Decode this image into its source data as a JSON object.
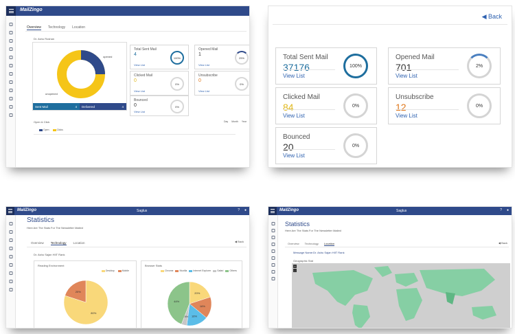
{
  "brand": {
    "logo": "MailZingo",
    "name_center": "Saglus"
  },
  "colors": {
    "header": "#2f4a8a",
    "accent_blue": "#1e6e9e",
    "yellow": "#f5c518",
    "orange": "#e0781c"
  },
  "tile1": {
    "tabs": [
      "Overview",
      "Technology",
      "Location"
    ],
    "breadcrumb": "Dr. Ashu Roshan",
    "donut": {
      "opened_label": "opened",
      "unopened_label": "unopened",
      "opened_fraction": 0.25
    },
    "sent_bar": {
      "label": "Sent Mail",
      "value": "4"
    },
    "delivered_bar": {
      "label": "Delivered",
      "value": "4"
    },
    "cards": [
      {
        "label": "Total Sent Mail",
        "value": "4",
        "link": "View List",
        "pct": "100%"
      },
      {
        "label": "Opened Mail",
        "value": "1",
        "link": "View List",
        "pct": "25%"
      },
      {
        "label": "Clicked Mail",
        "value": "0",
        "link": "View List",
        "pct": "0%"
      },
      {
        "label": "Unsubscribe",
        "value": "0",
        "link": "View List",
        "pct": "0%"
      },
      {
        "label": "Bounced",
        "value": "0",
        "link": "View List",
        "pct": "0%"
      }
    ],
    "open_click_label": "Open & Click",
    "range_tabs": [
      "Day",
      "Month",
      "Year"
    ],
    "legend_open": "Open",
    "legend_clicks": "Clicks"
  },
  "tile2": {
    "back_label": "Back",
    "cards": [
      {
        "label": "Total Sent Mail",
        "value": "37176",
        "link": "View List",
        "pct": "100%"
      },
      {
        "label": "Opened Mail",
        "value": "701",
        "link": "View List",
        "pct": "2%"
      },
      {
        "label": "Clicked Mail",
        "value": "84",
        "link": "View List",
        "pct": "0%"
      },
      {
        "label": "Unsubscribe",
        "value": "12",
        "link": "View List",
        "pct": "0%"
      },
      {
        "label": "Bounced",
        "value": "20",
        "link": "View List",
        "pct": "0%"
      }
    ]
  },
  "tile3": {
    "title": "Statistics",
    "subtitle": "Here Are The Stats For The Newsletter Mailed",
    "back_label": "Back",
    "tabs": [
      "Overview",
      "Technology",
      "Location"
    ],
    "message_name": "Dr. Ashu Sajan HIIT Rank",
    "reading_env": {
      "title": "Reading Environment",
      "legend": [
        "Desktop",
        "Mobile"
      ],
      "slices": [
        {
          "label": "Desktop",
          "value": 80,
          "text": "80%"
        },
        {
          "label": "Mobile",
          "value": 20,
          "text": "20%"
        }
      ]
    },
    "browser_stats": {
      "title": "Browser Stats",
      "legend": [
        "Chrome",
        "Mozilla",
        "Internet Explorer",
        "Safari",
        "Others"
      ],
      "slices": [
        {
          "label": "Chrome",
          "value": 20,
          "text": "20%"
        },
        {
          "label": "Mozilla",
          "value": 16,
          "text": "16%"
        },
        {
          "label": "Internet Explorer",
          "value": 16,
          "text": "16%"
        },
        {
          "label": "Safari",
          "value": 4,
          "text": "4%"
        },
        {
          "label": "Others",
          "value": 44,
          "text": "44%"
        }
      ]
    }
  },
  "tile4": {
    "title": "Statistics",
    "subtitle": "Here Are The Stats For The Newsletter Mailed",
    "back_label": "Back",
    "tabs": [
      "Overview",
      "Technology",
      "Location"
    ],
    "message_name": "Message Name:Dr. Ashu Sajan HIIT Rank",
    "geo_label": "Geographic Stat"
  }
}
